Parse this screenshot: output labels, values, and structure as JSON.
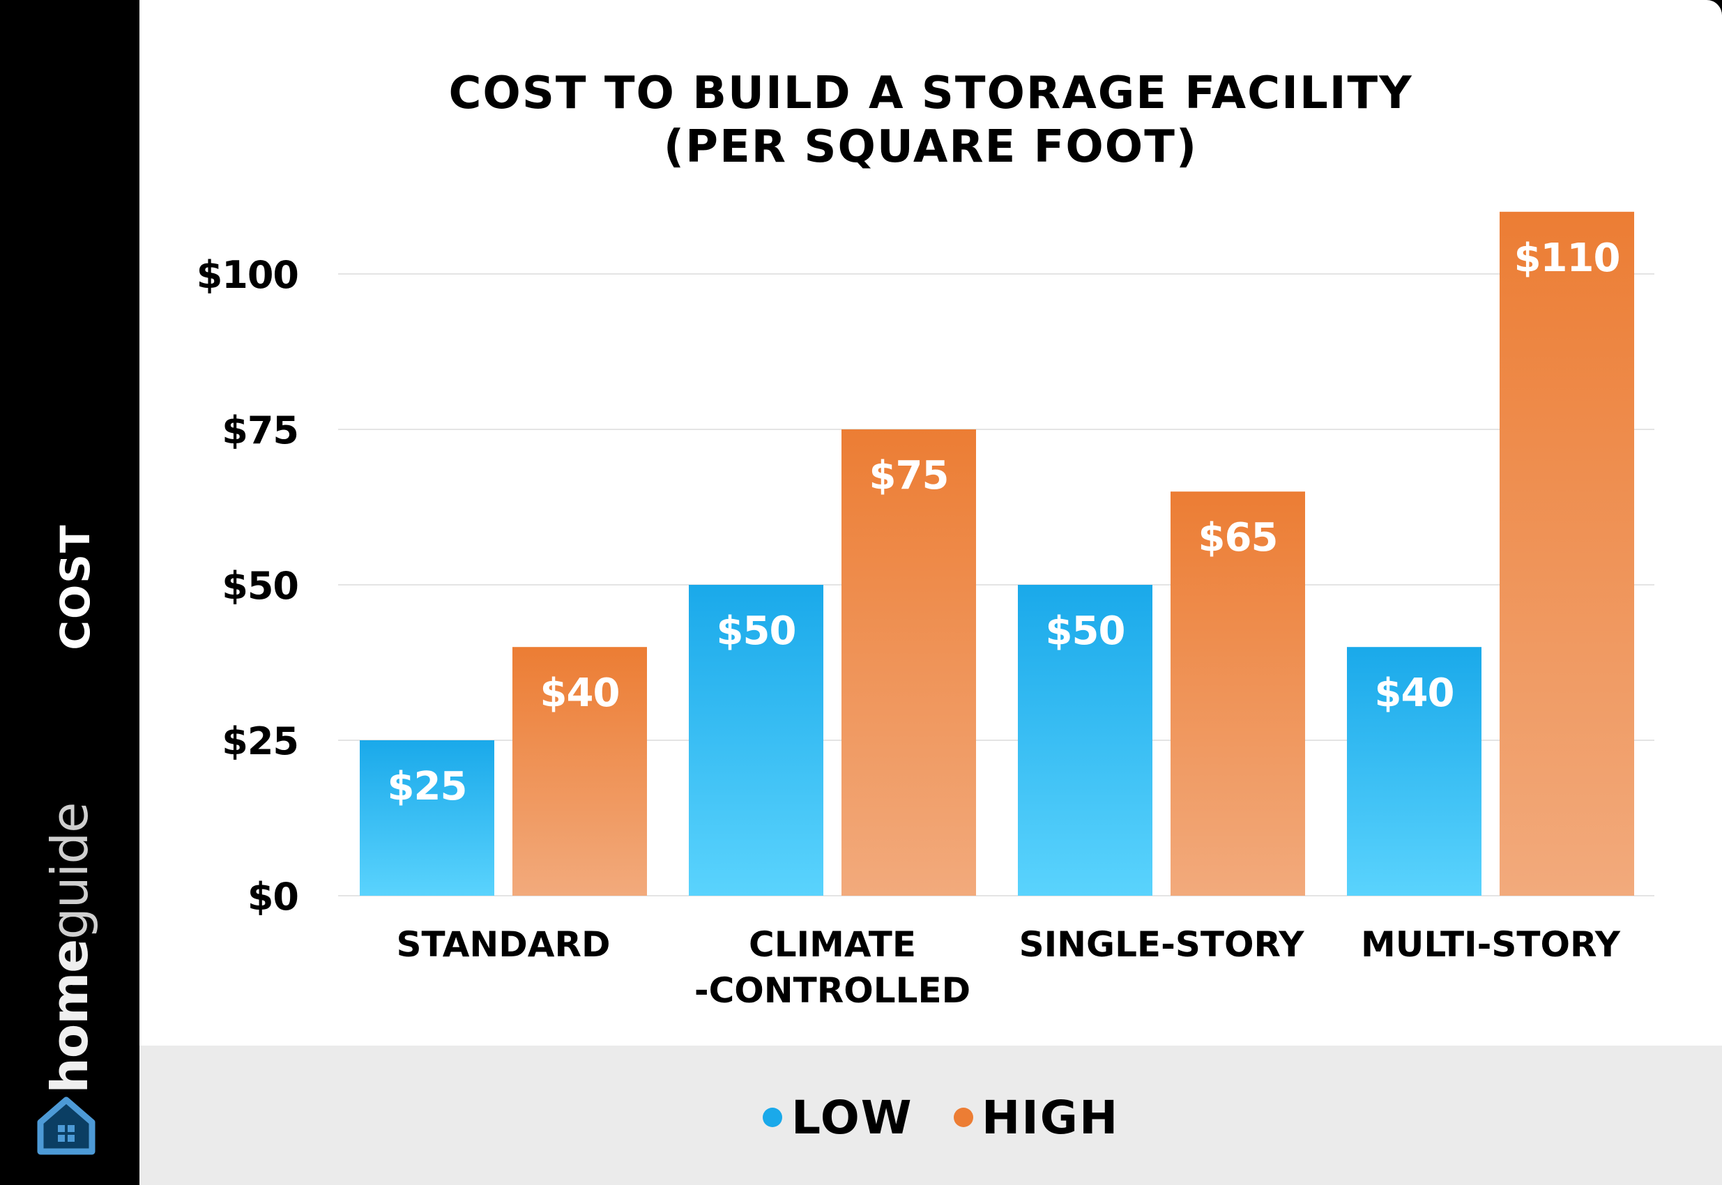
{
  "brand": {
    "name_bold": "home",
    "name_light": "guide"
  },
  "colors": {
    "low_top": "#1aa9ea",
    "low_bottom": "#5ad3fd",
    "high_top": "#ec7d34",
    "high_bottom": "#f2aa7c",
    "text": "#000000",
    "grid": "#e4e4e4"
  },
  "chart_data": {
    "type": "bar",
    "title": "COST TO BUILD A STORAGE FACILITY",
    "subtitle": "(PER SQUARE FOOT)",
    "ylabel": "COST",
    "xlabel": "",
    "categories": [
      [
        "STANDARD"
      ],
      [
        "CLIMATE",
        "-CONTROLLED"
      ],
      [
        "SINGLE-STORY"
      ],
      [
        "MULTI-STORY"
      ]
    ],
    "series": [
      {
        "name": "LOW",
        "values": [
          25,
          50,
          50,
          40
        ],
        "labels": [
          "$25",
          "$50",
          "$50",
          "$40"
        ]
      },
      {
        "name": "HIGH",
        "values": [
          40,
          75,
          65,
          110
        ],
        "labels": [
          "$40",
          "$75",
          "$65",
          "$110"
        ]
      }
    ],
    "ylim": [
      0,
      110
    ],
    "yticks": [
      0,
      25,
      50,
      75,
      100
    ],
    "ytick_labels": [
      "$0",
      "$25",
      "$50",
      "$75",
      "$100"
    ],
    "grid": true,
    "legend": "bottom-center"
  }
}
